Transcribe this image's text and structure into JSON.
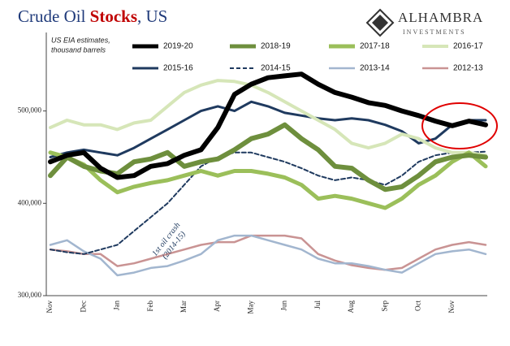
{
  "chart_data": {
    "type": "line",
    "title": [
      "Crude Oil ",
      "Stocks",
      ", US"
    ],
    "subtitle": [
      "US EIA estimates,",
      "thousand barrels"
    ],
    "logo": [
      "ALHAMBRA",
      "INVESTMENTS"
    ],
    "annotation": [
      "1st oil crash",
      "(2014-15)"
    ],
    "categories": [
      "Nov",
      null,
      "Dec",
      null,
      "Jan",
      null,
      "Feb",
      null,
      "Mar",
      null,
      "Apr",
      null,
      "May",
      null,
      "Jun",
      null,
      "Jul",
      null,
      "Aug",
      null,
      "Sep",
      null,
      "Oct",
      null,
      "Nov",
      null,
      null
    ],
    "ylim": [
      300000,
      585000
    ],
    "yticks": [
      {
        "value": 300000,
        "label": "300,000"
      },
      {
        "value": 400000,
        "label": "400,000"
      },
      {
        "value": 500000,
        "label": "500,000"
      }
    ],
    "series": [
      {
        "name": "2019-20",
        "color": "#000000",
        "width": 6,
        "values": [
          445000,
          452000,
          455000,
          438000,
          428000,
          430000,
          440000,
          443000,
          452000,
          458000,
          482000,
          518000,
          529000,
          536000,
          538000,
          540000,
          529000,
          520000,
          515000,
          509000,
          506000,
          500000,
          495000,
          489000,
          484000,
          489000,
          485000
        ]
      },
      {
        "name": "2018-19",
        "color": "#6e8f3d",
        "width": 6,
        "values": [
          430000,
          450000,
          440000,
          435000,
          432000,
          445000,
          448000,
          455000,
          440000,
          445000,
          448000,
          458000,
          470000,
          475000,
          485000,
          470000,
          458000,
          440000,
          438000,
          425000,
          415000,
          418000,
          430000,
          445000,
          450000,
          452000,
          450000
        ]
      },
      {
        "name": "2017-18",
        "color": "#9bbf5a",
        "width": 5,
        "values": [
          455000,
          450000,
          442000,
          425000,
          412000,
          418000,
          422000,
          425000,
          430000,
          435000,
          430000,
          435000,
          435000,
          432000,
          428000,
          420000,
          405000,
          408000,
          405000,
          400000,
          395000,
          405000,
          420000,
          430000,
          445000,
          455000,
          440000
        ]
      },
      {
        "name": "2016-17",
        "color": "#d6e6b8",
        "width": 4,
        "values": [
          482000,
          490000,
          485000,
          485000,
          480000,
          487000,
          490000,
          505000,
          520000,
          528000,
          533000,
          532000,
          528000,
          520000,
          510000,
          500000,
          490000,
          480000,
          465000,
          460000,
          465000,
          475000,
          470000,
          460000,
          455000,
          455000,
          452000
        ]
      },
      {
        "name": "2015-16",
        "color": "#1f3a5f",
        "width": 3,
        "values": [
          450000,
          455000,
          458000,
          455000,
          452000,
          460000,
          470000,
          480000,
          490000,
          500000,
          505000,
          500000,
          510000,
          505000,
          498000,
          495000,
          492000,
          490000,
          492000,
          490000,
          485000,
          478000,
          465000,
          470000,
          485000,
          490000,
          490000
        ]
      },
      {
        "name": "2014-15",
        "color": "#1f3a5f",
        "width": 2,
        "dashed": true,
        "values": [
          350000,
          347000,
          345000,
          350000,
          355000,
          370000,
          385000,
          400000,
          420000,
          440000,
          450000,
          455000,
          455000,
          450000,
          445000,
          438000,
          430000,
          425000,
          428000,
          425000,
          420000,
          430000,
          445000,
          452000,
          455000,
          455000,
          456000
        ]
      },
      {
        "name": "2013-14",
        "color": "#a2b6cf",
        "width": 2.5,
        "values": [
          355000,
          360000,
          348000,
          340000,
          322000,
          325000,
          330000,
          332000,
          338000,
          345000,
          360000,
          365000,
          365000,
          360000,
          355000,
          350000,
          340000,
          335000,
          335000,
          332000,
          328000,
          325000,
          335000,
          345000,
          348000,
          350000,
          345000
        ]
      },
      {
        "name": "2012-13",
        "color": "#c99393",
        "width": 2.5,
        "values": [
          350000,
          348000,
          345000,
          345000,
          332000,
          335000,
          340000,
          345000,
          350000,
          355000,
          358000,
          358000,
          365000,
          365000,
          365000,
          362000,
          345000,
          338000,
          333000,
          330000,
          328000,
          330000,
          340000,
          350000,
          355000,
          358000,
          355000
        ]
      }
    ]
  }
}
